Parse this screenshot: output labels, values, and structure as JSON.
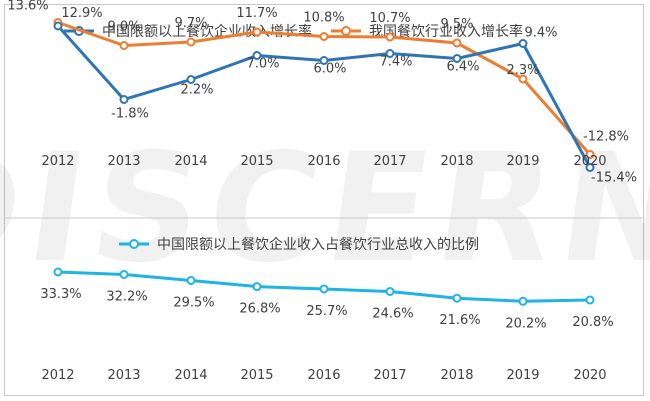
{
  "watermark": "DISCERN",
  "chart_data": [
    {
      "type": "line",
      "categories": [
        "2012",
        "2013",
        "2014",
        "2015",
        "2016",
        "2017",
        "2018",
        "2019",
        "2020"
      ],
      "series": [
        {
          "name": "中国限额以上餐饮企业收入增长率",
          "color": "#2e75b6",
          "values": [
            12.9,
            -1.8,
            2.2,
            7.0,
            6.0,
            7.4,
            6.4,
            9.4,
            -15.4
          ],
          "labels": [
            "12.9%",
            "-1.8%",
            "2.2%",
            "7.0%",
            "6.0%",
            "7.4%",
            "6.4%",
            "9.4%",
            "-15.4%"
          ]
        },
        {
          "name": "我国餐饮行业收入增长率",
          "color": "#ed7d31",
          "values": [
            13.6,
            9.0,
            9.7,
            11.7,
            10.8,
            10.7,
            9.5,
            2.3,
            -12.8
          ],
          "labels": [
            "13.6%",
            "9.0%",
            "9.7%",
            "11.7%",
            "10.8%",
            "10.7%",
            "9.5%",
            "2.3%",
            "-12.8%"
          ]
        }
      ],
      "legend_position": "top",
      "grid": false
    },
    {
      "type": "line",
      "categories": [
        "2012",
        "2013",
        "2014",
        "2015",
        "2016",
        "2017",
        "2018",
        "2019",
        "2020"
      ],
      "series": [
        {
          "name": "中国限额以上餐饮企业收入占餐饮行业总收入的比例",
          "color": "#1fb4e6",
          "values": [
            33.3,
            32.2,
            29.5,
            26.8,
            25.7,
            24.6,
            21.6,
            20.2,
            20.8
          ],
          "labels": [
            "33.3%",
            "32.2%",
            "29.5%",
            "26.8%",
            "25.7%",
            "24.6%",
            "21.6%",
            "20.2%",
            "20.8%"
          ]
        }
      ],
      "legend_position": "top",
      "grid": false
    }
  ]
}
